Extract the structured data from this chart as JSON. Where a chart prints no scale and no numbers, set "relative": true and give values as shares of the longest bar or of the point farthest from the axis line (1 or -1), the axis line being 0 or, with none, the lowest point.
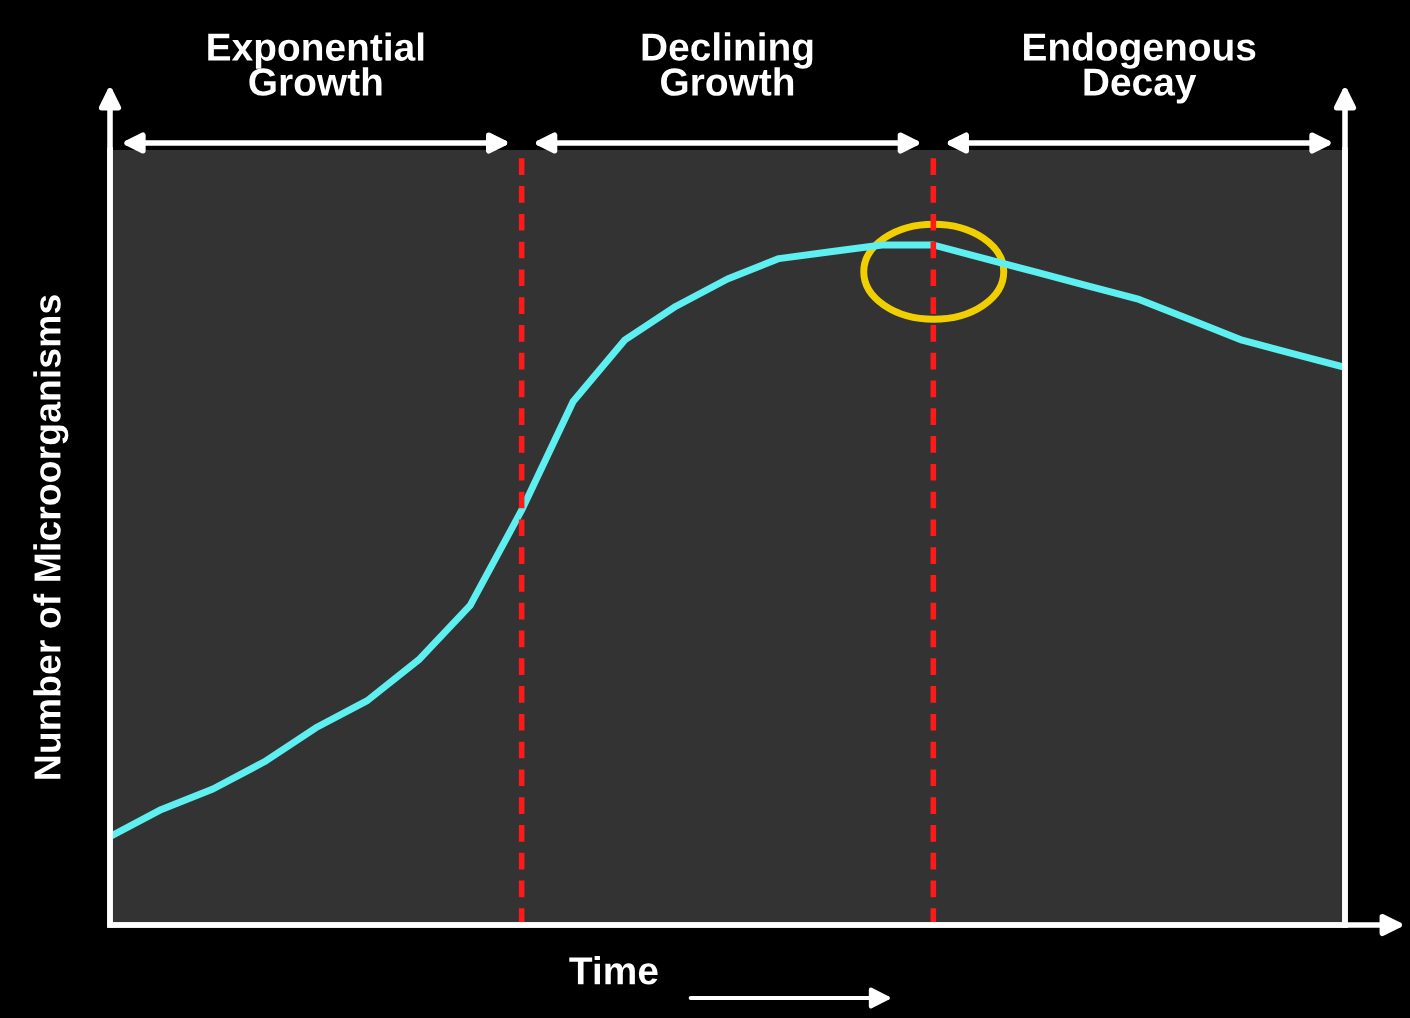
{
  "chart_data": {
    "type": "line",
    "relative": true,
    "xlabel": "Time",
    "ylabel": "Number of Microorganisms",
    "categories": [
      null,
      null,
      null,
      null,
      null,
      null,
      null,
      null,
      null,
      null,
      null,
      null,
      null,
      null,
      null,
      null,
      null,
      null,
      null,
      null,
      null,
      null,
      null,
      null,
      null
    ],
    "marker": "none",
    "line_style": "solid",
    "series": [
      {
        "color": "#5ef0f0",
        "values": [
          0.13,
          0.17,
          0.2,
          0.24,
          0.29,
          0.33,
          0.39,
          0.47,
          0.61,
          0.77,
          0.86,
          0.91,
          0.95,
          0.98,
          0.99,
          1.0,
          1.0,
          0.98,
          0.96,
          0.94,
          0.92,
          0.89,
          0.86,
          0.84,
          0.82
        ]
      }
    ],
    "annotations": [
      "Exponential\nGrowth",
      "Declining\nGrowth",
      "Endogenous\nDecay"
    ]
  }
}
